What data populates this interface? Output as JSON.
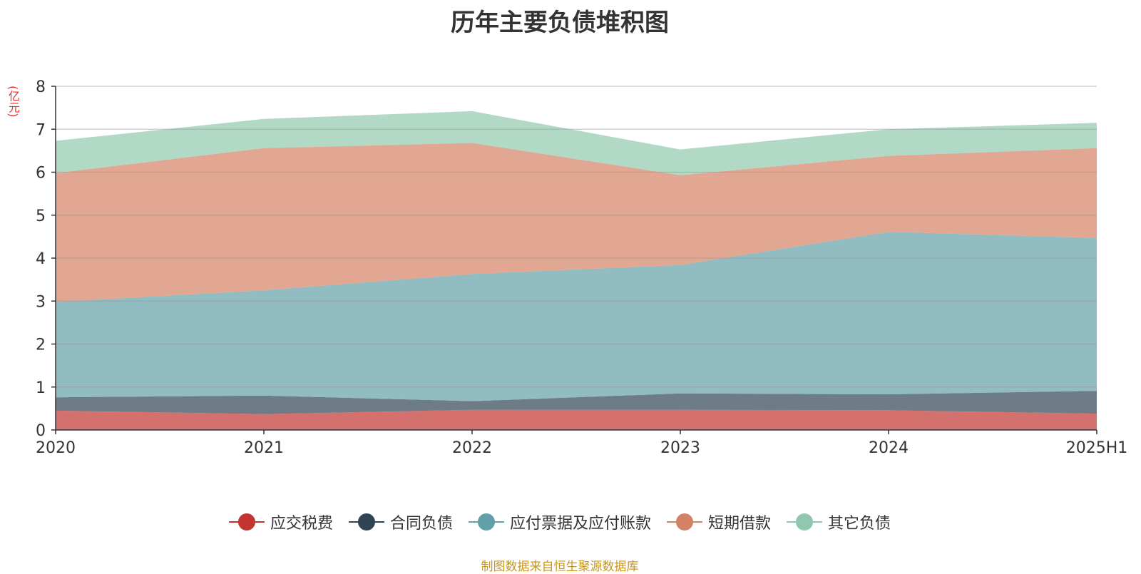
{
  "chart_data": {
    "type": "area",
    "stacked": true,
    "title": "历年主要负债堆积图",
    "unit": "(亿元)",
    "categories": [
      "2020",
      "2021",
      "2022",
      "2023",
      "2024",
      "2025H1"
    ],
    "ylim": [
      0,
      8
    ],
    "yticks": [
      0,
      1,
      2,
      3,
      4,
      5,
      6,
      7,
      8
    ],
    "grid": true,
    "legend_position": "bottom",
    "series": [
      {
        "name": "应交税费",
        "color": "#c23531",
        "values": [
          0.45,
          0.37,
          0.47,
          0.47,
          0.46,
          0.38
        ]
      },
      {
        "name": "合同负债",
        "color": "#2f4554",
        "values": [
          0.31,
          0.43,
          0.2,
          0.38,
          0.37,
          0.53
        ]
      },
      {
        "name": "应付票据及应付账款",
        "color": "#61a0a8",
        "values": [
          2.22,
          2.45,
          2.96,
          2.99,
          3.78,
          3.56
        ]
      },
      {
        "name": "短期借款",
        "color": "#d48265",
        "values": [
          3.0,
          3.31,
          3.05,
          2.09,
          1.77,
          2.09
        ]
      },
      {
        "name": "其它负债",
        "color": "#91c7ae",
        "values": [
          0.75,
          0.68,
          0.74,
          0.6,
          0.62,
          0.59
        ]
      }
    ]
  },
  "footer": "制图数据来自恒生聚源数据库"
}
